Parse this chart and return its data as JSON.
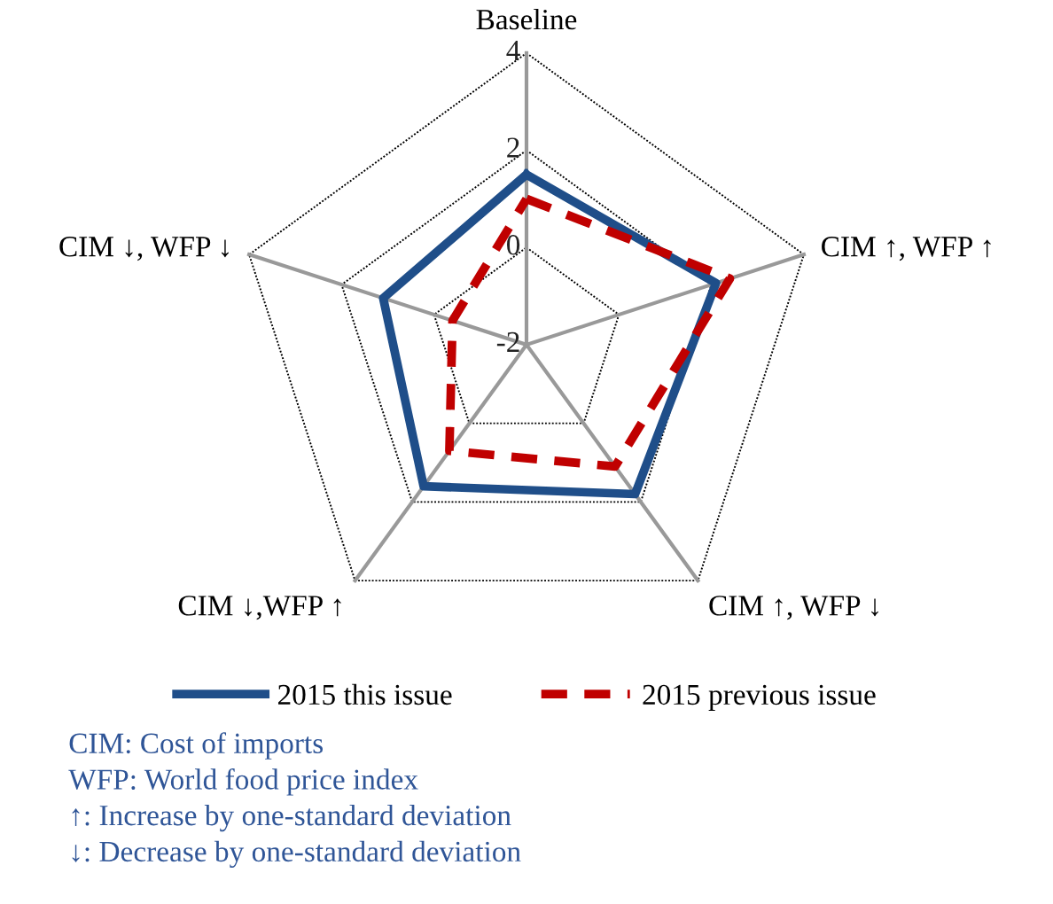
{
  "chart_data": {
    "type": "radar",
    "categories": [
      "Baseline",
      "CIM ↑, WFP ↑",
      "CIM ↑, WFP ↓",
      "CIM ↓,WFP ↑",
      "CIM ↓, WFP ↓"
    ],
    "series": [
      {
        "name": "2015 this issue",
        "color": "#1f4e89",
        "values": [
          1.5,
          2.1,
          1.8,
          1.6,
          1.1
        ],
        "line_style": "solid"
      },
      {
        "name": "2015 previous issue",
        "color": "#c00000",
        "values": [
          1.0,
          2.4,
          1.1,
          0.7,
          -0.4
        ],
        "line_style": "dashed"
      }
    ],
    "ylim": [
      -2,
      4
    ],
    "yticks": [
      -2,
      0,
      2,
      4
    ],
    "legend": "bottom",
    "marker": "none",
    "annotations": [
      "CIM: Cost of imports",
      "WFP: World food price index",
      "↑: Increase by one-standard deviation",
      "↓: Decrease by one-standard deviation"
    ]
  }
}
